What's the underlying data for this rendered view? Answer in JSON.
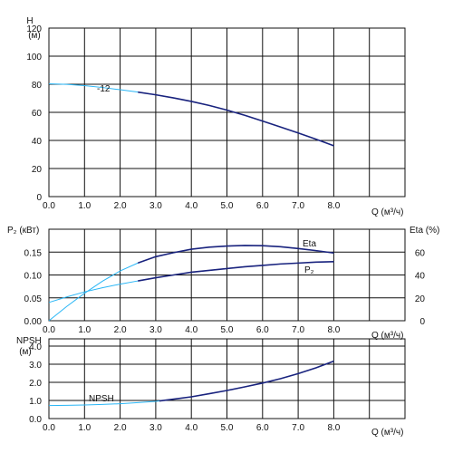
{
  "chart_data": [
    {
      "type": "line",
      "ylabel": "H",
      "yunit": "(м)",
      "xlabel": "Q (м³/ч)",
      "xlim": [
        0,
        10
      ],
      "ylim": [
        0,
        120
      ],
      "xticks": [
        "0.0",
        "1.0",
        "2.0",
        "3.0",
        "4.0",
        "5.0",
        "6.0",
        "7.0",
        "8.0"
      ],
      "yticks": [
        "0",
        "20",
        "40",
        "60",
        "80",
        "100",
        "120"
      ],
      "grid": true,
      "series": [
        {
          "name": "-12",
          "color": "#1a237e",
          "extrapolated_color": "#29b6f6",
          "x": [
            0.0,
            0.5,
            1.0,
            1.5,
            2.0,
            2.5,
            3.0,
            3.5,
            4.0,
            4.5,
            5.0,
            5.5,
            6.0,
            6.5,
            7.0,
            7.5,
            8.0
          ],
          "y": [
            80.3,
            79.9,
            79.0,
            77.7,
            76.1,
            74.4,
            72.5,
            70.3,
            67.8,
            64.9,
            61.6,
            57.9,
            53.8,
            49.6,
            45.3,
            40.9,
            36.2
          ],
          "solid_from": 2.5
        }
      ]
    },
    {
      "type": "line",
      "ylabel": "P₂ (кВт)",
      "ylabel_right": "Eta (%)",
      "xlabel": "Q (м³/ч)",
      "xlim": [
        0,
        10
      ],
      "ylim": [
        0,
        0.2
      ],
      "ylim_right": [
        0,
        80
      ],
      "xticks": [
        "0.0",
        "1.0",
        "2.0",
        "3.0",
        "4.0",
        "5.0",
        "6.0",
        "7.0",
        "8.0"
      ],
      "yticks": [
        "0.00",
        "0.05",
        "0.10",
        "0.15"
      ],
      "yticks_right": [
        "0",
        "20",
        "40",
        "60"
      ],
      "grid": true,
      "series": [
        {
          "name": "Eta",
          "axis": "right",
          "color": "#1a237e",
          "extrapolated_color": "#29b6f6",
          "x": [
            0.0,
            0.5,
            1.0,
            1.5,
            2.0,
            2.5,
            3.0,
            3.5,
            4.0,
            4.5,
            5.0,
            5.5,
            6.0,
            6.5,
            7.0,
            7.5,
            8.0
          ],
          "y": [
            0.0,
            12.5,
            24.0,
            34.5,
            43.5,
            50.5,
            56.0,
            59.5,
            62.5,
            64.3,
            65.3,
            65.8,
            65.6,
            64.7,
            63.1,
            61.3,
            59.2
          ],
          "solid_from": 2.5
        },
        {
          "name": "P₂",
          "axis": "left",
          "color": "#1a237e",
          "extrapolated_color": "#29b6f6",
          "x": [
            0.0,
            0.5,
            1.0,
            1.5,
            2.0,
            2.5,
            3.0,
            3.5,
            4.0,
            4.5,
            5.0,
            5.5,
            6.0,
            6.5,
            7.0,
            7.5,
            8.0
          ],
          "y": [
            0.04,
            0.052,
            0.063,
            0.072,
            0.08,
            0.087,
            0.094,
            0.1,
            0.106,
            0.11,
            0.114,
            0.118,
            0.121,
            0.124,
            0.126,
            0.128,
            0.129
          ],
          "solid_from": 2.5
        }
      ]
    },
    {
      "type": "line",
      "ylabel": "NPSH",
      "yunit": "(м)",
      "xlabel": "Q (м³/ч)",
      "xlim": [
        0,
        10
      ],
      "ylim": [
        0,
        4.4
      ],
      "xticks": [
        "0.0",
        "1.0",
        "2.0",
        "3.0",
        "4.0",
        "5.0",
        "6.0",
        "7.0",
        "8.0"
      ],
      "yticks": [
        "0.0",
        "1.0",
        "2.0",
        "3.0",
        "4.0"
      ],
      "grid": true,
      "series": [
        {
          "name": "NPSH",
          "color": "#1a237e",
          "extrapolated_color": "#29b6f6",
          "x": [
            0.0,
            0.5,
            1.0,
            1.5,
            2.0,
            2.5,
            3.0,
            3.5,
            4.0,
            4.5,
            5.0,
            5.5,
            6.0,
            6.5,
            7.0,
            7.5,
            8.0
          ],
          "y": [
            0.72,
            0.73,
            0.75,
            0.78,
            0.82,
            0.88,
            0.95,
            1.07,
            1.2,
            1.37,
            1.55,
            1.75,
            1.96,
            2.2,
            2.48,
            2.8,
            3.17
          ],
          "solid_from": 3.1
        }
      ]
    }
  ]
}
